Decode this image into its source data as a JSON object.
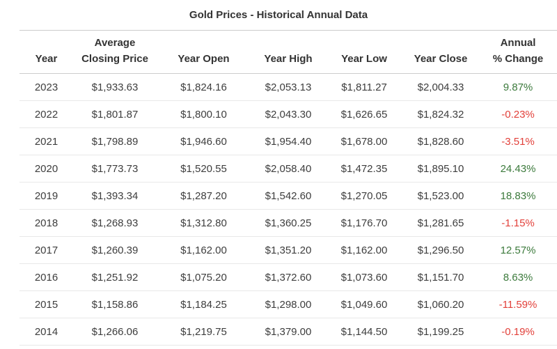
{
  "page": {
    "title": "Gold Prices - Historical Annual Data"
  },
  "colors": {
    "positive": "#3c7a3c",
    "negative": "#e2403a",
    "header_border": "#cccccc",
    "row_separator": "#e8e8e8",
    "text": "#333333"
  },
  "table": {
    "fields": [
      "year",
      "average_closing_price",
      "year_open",
      "year_high",
      "year_low",
      "year_close",
      "annual_pct_change"
    ],
    "columns": [
      {
        "id": "year",
        "label": "Year"
      },
      {
        "id": "average-closing-price",
        "label": "Average\nClosing Price"
      },
      {
        "id": "year-open",
        "label": "Year Open"
      },
      {
        "id": "year-high",
        "label": "Year High"
      },
      {
        "id": "year-low",
        "label": "Year Low"
      },
      {
        "id": "year-close",
        "label": "Year Close"
      },
      {
        "id": "annual-pct-change",
        "label": "Annual\n% Change"
      }
    ],
    "rows": [
      {
        "year": "2023",
        "average_closing_price": "$1,933.63",
        "year_open": "$1,824.16",
        "year_high": "$2,053.13",
        "year_low": "$1,811.27",
        "year_close": "$2,004.33",
        "annual_pct_change": "9.87%",
        "trend": "positive"
      },
      {
        "year": "2022",
        "average_closing_price": "$1,801.87",
        "year_open": "$1,800.10",
        "year_high": "$2,043.30",
        "year_low": "$1,626.65",
        "year_close": "$1,824.32",
        "annual_pct_change": "-0.23%",
        "trend": "negative"
      },
      {
        "year": "2021",
        "average_closing_price": "$1,798.89",
        "year_open": "$1,946.60",
        "year_high": "$1,954.40",
        "year_low": "$1,678.00",
        "year_close": "$1,828.60",
        "annual_pct_change": "-3.51%",
        "trend": "negative"
      },
      {
        "year": "2020",
        "average_closing_price": "$1,773.73",
        "year_open": "$1,520.55",
        "year_high": "$2,058.40",
        "year_low": "$1,472.35",
        "year_close": "$1,895.10",
        "annual_pct_change": "24.43%",
        "trend": "positive"
      },
      {
        "year": "2019",
        "average_closing_price": "$1,393.34",
        "year_open": "$1,287.20",
        "year_high": "$1,542.60",
        "year_low": "$1,270.05",
        "year_close": "$1,523.00",
        "annual_pct_change": "18.83%",
        "trend": "positive"
      },
      {
        "year": "2018",
        "average_closing_price": "$1,268.93",
        "year_open": "$1,312.80",
        "year_high": "$1,360.25",
        "year_low": "$1,176.70",
        "year_close": "$1,281.65",
        "annual_pct_change": "-1.15%",
        "trend": "negative"
      },
      {
        "year": "2017",
        "average_closing_price": "$1,260.39",
        "year_open": "$1,162.00",
        "year_high": "$1,351.20",
        "year_low": "$1,162.00",
        "year_close": "$1,296.50",
        "annual_pct_change": "12.57%",
        "trend": "positive"
      },
      {
        "year": "2016",
        "average_closing_price": "$1,251.92",
        "year_open": "$1,075.20",
        "year_high": "$1,372.60",
        "year_low": "$1,073.60",
        "year_close": "$1,151.70",
        "annual_pct_change": "8.63%",
        "trend": "positive"
      },
      {
        "year": "2015",
        "average_closing_price": "$1,158.86",
        "year_open": "$1,184.25",
        "year_high": "$1,298.00",
        "year_low": "$1,049.60",
        "year_close": "$1,060.20",
        "annual_pct_change": "-11.59%",
        "trend": "negative"
      },
      {
        "year": "2014",
        "average_closing_price": "$1,266.06",
        "year_open": "$1,219.75",
        "year_high": "$1,379.00",
        "year_low": "$1,144.50",
        "year_close": "$1,199.25",
        "annual_pct_change": "-0.19%",
        "trend": "negative"
      }
    ]
  }
}
